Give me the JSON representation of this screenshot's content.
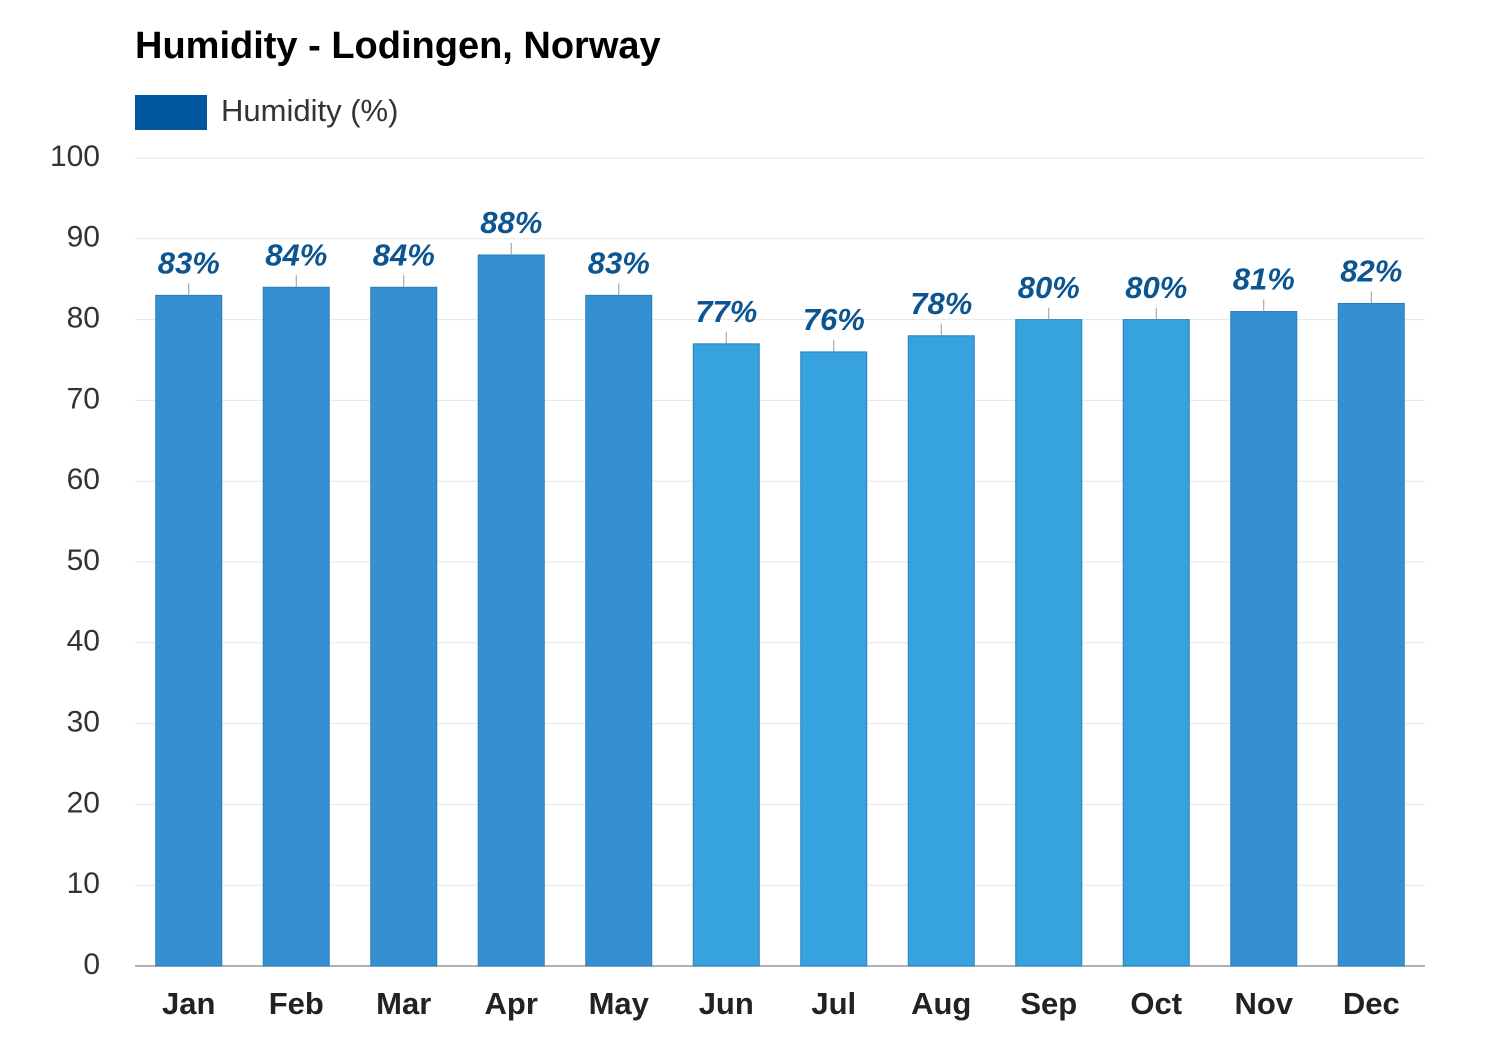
{
  "chart_data": {
    "type": "bar",
    "title": "Humidity - Lodingen, Norway",
    "series": [
      {
        "name": "Humidity (%)",
        "color": "#0057a0",
        "values": [
          83,
          84,
          84,
          88,
          83,
          77,
          76,
          78,
          80,
          80,
          81,
          82
        ],
        "value_labels": [
          "83%",
          "84%",
          "84%",
          "88%",
          "83%",
          "77%",
          "76%",
          "78%",
          "80%",
          "80%",
          "81%",
          "82%"
        ],
        "bar_colors": [
          "#3490d0",
          "#3490d0",
          "#3490d0",
          "#3490d0",
          "#3490d0",
          "#36a2de",
          "#36a2de",
          "#36a2de",
          "#36a2de",
          "#36a2de",
          "#3490d0",
          "#3490d0"
        ]
      }
    ],
    "categories": [
      "Jan",
      "Feb",
      "Mar",
      "Apr",
      "May",
      "Jun",
      "Jul",
      "Aug",
      "Sep",
      "Oct",
      "Nov",
      "Dec"
    ],
    "ylim": [
      0,
      100
    ],
    "yticks": [
      0,
      10,
      20,
      30,
      40,
      50,
      60,
      70,
      80,
      90,
      100
    ],
    "grid": true
  }
}
